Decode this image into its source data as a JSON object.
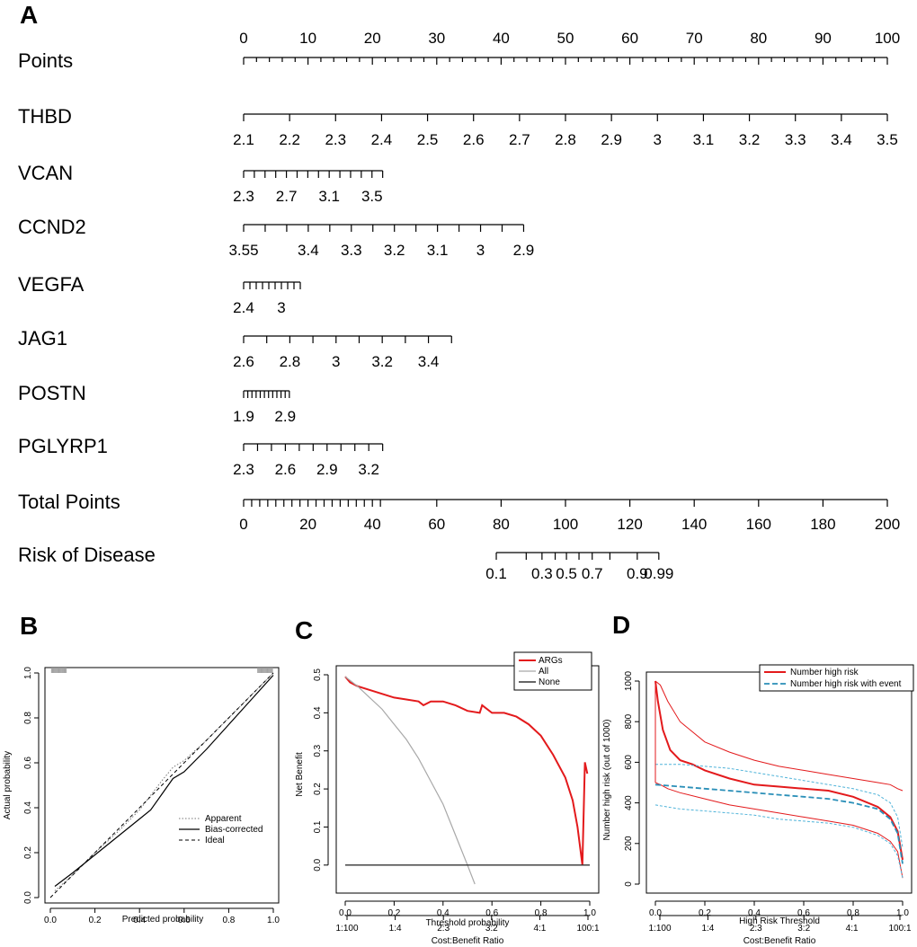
{
  "colors": {
    "red": "#e31a1c",
    "grey": "#a8a8a8",
    "cyan": "#4fb3d9",
    "dark": "#000000"
  },
  "chart_data": [
    {
      "panel": "A",
      "type": "nomogram",
      "rows": [
        {
          "name": "Points",
          "axis": "points",
          "ticks": [
            0,
            10,
            20,
            30,
            40,
            50,
            60,
            70,
            80,
            90,
            100
          ],
          "labels": [
            "0",
            "10",
            "20",
            "30",
            "40",
            "50",
            "60",
            "70",
            "80",
            "90",
            "100"
          ]
        },
        {
          "name": "THBD",
          "axis": "variable",
          "ticks": [
            2.1,
            2.2,
            2.3,
            2.4,
            2.5,
            2.6,
            2.7,
            2.8,
            2.9,
            3,
            3.1,
            3.2,
            3.3,
            3.4,
            3.5
          ],
          "labels": [
            "2.1",
            "2.2",
            "2.3",
            "2.4",
            "2.5",
            "2.6",
            "2.7",
            "2.8",
            "2.9",
            "3",
            "3.1",
            "3.2",
            "3.3",
            "3.4",
            "3.5"
          ],
          "points_range": [
            0,
            100
          ]
        },
        {
          "name": "VCAN",
          "axis": "variable",
          "ticks": [
            2.3,
            2.4,
            2.5,
            2.6,
            2.7,
            2.8,
            2.9,
            3.0,
            3.1,
            3.2,
            3.3,
            3.4,
            3.5,
            3.6
          ],
          "labels": [
            "2.3",
            "2.7",
            "3.1",
            "3.5"
          ],
          "label_values": [
            2.3,
            2.7,
            3.1,
            3.5
          ],
          "points_range": [
            0,
            21.6
          ]
        },
        {
          "name": "CCND2",
          "axis": "variable",
          "ticks": [
            3.55,
            3.5,
            3.45,
            3.4,
            3.35,
            3.3,
            3.25,
            3.2,
            3.15,
            3.1,
            3.05,
            3.0,
            2.95,
            2.9
          ],
          "labels": [
            "3.55",
            "3.4",
            "3.3",
            "3.2",
            "3.1",
            "3",
            "2.9"
          ],
          "label_values": [
            3.55,
            3.4,
            3.3,
            3.2,
            3.1,
            3.0,
            2.9
          ],
          "points_range": [
            0,
            43.5
          ]
        },
        {
          "name": "VEGFA",
          "axis": "variable",
          "ticks": [
            2.4,
            2.5,
            2.6,
            2.7,
            2.8,
            2.9,
            3.0,
            3.1,
            3.2,
            3.3
          ],
          "labels": [
            "2.4",
            "3"
          ],
          "label_values": [
            2.4,
            3.0
          ],
          "points_range": [
            0,
            8.8
          ]
        },
        {
          "name": "JAG1",
          "axis": "variable",
          "ticks": [
            2.6,
            2.7,
            2.8,
            2.9,
            3.0,
            3.1,
            3.2,
            3.3,
            3.4,
            3.5
          ],
          "labels": [
            "2.6",
            "2.8",
            "3",
            "3.2",
            "3.4"
          ],
          "label_values": [
            2.6,
            2.8,
            3.0,
            3.2,
            3.4
          ],
          "points_range": [
            0,
            32.3
          ]
        },
        {
          "name": "POSTN",
          "axis": "variable",
          "ticks": [
            1.9,
            2.0,
            2.1,
            2.2,
            2.3,
            2.4,
            2.5,
            2.6,
            2.7,
            2.8,
            2.9,
            3.0
          ],
          "labels": [
            "1.9",
            "2.9"
          ],
          "label_values": [
            1.9,
            2.9
          ],
          "points_range": [
            0,
            7.1
          ]
        },
        {
          "name": "PGLYRP1",
          "axis": "variable",
          "ticks": [
            2.3,
            2.4,
            2.5,
            2.6,
            2.7,
            2.8,
            2.9,
            3.0,
            3.1,
            3.2,
            3.3
          ],
          "labels": [
            "2.3",
            "2.6",
            "2.9",
            "3.2"
          ],
          "label_values": [
            2.3,
            2.6,
            2.9,
            3.2
          ],
          "points_range": [
            0,
            21.6
          ]
        },
        {
          "name": "Total Points",
          "axis": "total",
          "range": [
            0,
            200
          ],
          "minor_range": [
            0,
            43
          ],
          "minor_step": 2.5,
          "labels": [
            "0",
            "20",
            "40",
            "60",
            "80",
            "100",
            "120",
            "140",
            "160",
            "180",
            "200"
          ]
        },
        {
          "name": "Risk of Disease",
          "axis": "risk",
          "ticks": [
            0.1,
            0.2,
            0.3,
            0.4,
            0.5,
            0.6,
            0.7,
            0.8,
            0.9,
            0.99
          ],
          "tick_total_points": [
            78.5,
            87.8,
            92.7,
            96.8,
            100.3,
            104.2,
            108.3,
            113.8,
            122.3,
            129
          ],
          "labels": [
            "0.1",
            "0.3",
            "0.5",
            "0.7",
            "0.9",
            "0.99"
          ],
          "label_values": [
            0.1,
            0.3,
            0.5,
            0.7,
            0.9,
            0.99
          ]
        }
      ]
    },
    {
      "panel": "B",
      "type": "line",
      "xlabel": "Predicted probability",
      "ylabel": "Actual probability",
      "xlim": [
        0,
        1
      ],
      "ylim": [
        0,
        1
      ],
      "xticks": [
        "0.0",
        "0.2",
        "0.4",
        "0.6",
        "0.8",
        "1.0"
      ],
      "yticks": [
        "0.0",
        "0.2",
        "0.4",
        "0.6",
        "0.8",
        "1.0"
      ],
      "legend": [
        "Apparent",
        "Bias-corrected",
        "Ideal"
      ],
      "series": [
        {
          "name": "Apparent",
          "x": [
            0.02,
            0.1,
            0.2,
            0.3,
            0.4,
            0.5,
            0.55,
            0.6,
            0.7,
            0.8,
            0.9,
            1.0
          ],
          "y": [
            0.03,
            0.1,
            0.2,
            0.29,
            0.39,
            0.52,
            0.58,
            0.61,
            0.7,
            0.8,
            0.9,
            1.0
          ]
        },
        {
          "name": "Bias-corrected",
          "x": [
            0.02,
            0.1,
            0.2,
            0.3,
            0.4,
            0.45,
            0.5,
            0.55,
            0.6,
            0.7,
            0.8,
            0.9,
            1.0
          ],
          "y": [
            0.05,
            0.11,
            0.19,
            0.27,
            0.35,
            0.39,
            0.46,
            0.53,
            0.56,
            0.66,
            0.77,
            0.88,
            0.99
          ]
        },
        {
          "name": "Ideal",
          "x": [
            0,
            1
          ],
          "y": [
            0,
            1
          ]
        }
      ]
    },
    {
      "panel": "C",
      "type": "line",
      "xlabel": "Threshold probability",
      "ylabel": "Net Benefit",
      "xlim": [
        0,
        1
      ],
      "ylim": [
        -0.05,
        0.5
      ],
      "xticks": [
        "0.0",
        "0.2",
        "0.4",
        "0.6",
        "0.8",
        "1.0"
      ],
      "yticks": [
        "0.0",
        "0.1",
        "0.2",
        "0.3",
        "0.4",
        "0.5"
      ],
      "legend": [
        "ARGs",
        "All",
        "None"
      ],
      "second_axis": {
        "title": "Cost:Benefit Ratio",
        "labels": [
          "1:100",
          "1:4",
          "2:3",
          "3:2",
          "4:1",
          "100:1"
        ]
      },
      "series": [
        {
          "name": "ARGs",
          "x": [
            0.0,
            0.02,
            0.05,
            0.1,
            0.15,
            0.2,
            0.25,
            0.3,
            0.32,
            0.35,
            0.4,
            0.45,
            0.5,
            0.55,
            0.56,
            0.6,
            0.65,
            0.7,
            0.75,
            0.8,
            0.85,
            0.9,
            0.93,
            0.95,
            0.97,
            0.98,
            0.99
          ],
          "y": [
            0.495,
            0.48,
            0.47,
            0.46,
            0.45,
            0.44,
            0.435,
            0.43,
            0.42,
            0.43,
            0.43,
            0.42,
            0.405,
            0.4,
            0.42,
            0.4,
            0.4,
            0.39,
            0.37,
            0.34,
            0.29,
            0.23,
            0.17,
            0.1,
            0.0,
            0.27,
            0.24
          ]
        },
        {
          "name": "All",
          "x": [
            0.0,
            0.05,
            0.1,
            0.15,
            0.2,
            0.25,
            0.3,
            0.35,
            0.4,
            0.45,
            0.5,
            0.53
          ],
          "y": [
            0.495,
            0.47,
            0.44,
            0.41,
            0.37,
            0.33,
            0.28,
            0.22,
            0.16,
            0.08,
            0.0,
            -0.05
          ]
        },
        {
          "name": "None",
          "x": [
            0,
            1
          ],
          "y": [
            0,
            0
          ]
        }
      ]
    },
    {
      "panel": "D",
      "type": "line",
      "xlabel": "High Risk Threshold",
      "ylabel": "Number high risk (out of 1000)",
      "xlim": [
        0,
        1
      ],
      "ylim": [
        0,
        1000
      ],
      "xticks": [
        "0.0",
        "0.2",
        "0.4",
        "0.6",
        "0.8",
        "1.0"
      ],
      "yticks": [
        "0",
        "200",
        "400",
        "600",
        "800",
        "1000"
      ],
      "legend": [
        "Number high risk",
        "Number high risk with event"
      ],
      "second_axis": {
        "title": "Cost:Benefit Ratio",
        "labels": [
          "1:100",
          "1:4",
          "2:3",
          "3:2",
          "4:1",
          "100:1"
        ]
      },
      "series": [
        {
          "name": "Number high risk",
          "x": [
            0.0,
            0.01,
            0.03,
            0.06,
            0.1,
            0.15,
            0.2,
            0.3,
            0.4,
            0.5,
            0.6,
            0.7,
            0.8,
            0.9,
            0.95,
            0.98,
            1.0
          ],
          "y": [
            1000,
            900,
            760,
            660,
            610,
            590,
            560,
            520,
            490,
            480,
            470,
            460,
            430,
            380,
            330,
            260,
            120
          ]
        },
        {
          "name": "Number high risk upper",
          "x": [
            0.0,
            0.02,
            0.05,
            0.1,
            0.2,
            0.3,
            0.4,
            0.5,
            0.6,
            0.7,
            0.8,
            0.9,
            0.95,
            0.98,
            1.0
          ],
          "y": [
            1000,
            980,
            900,
            800,
            700,
            650,
            610,
            580,
            560,
            540,
            520,
            500,
            490,
            470,
            460
          ]
        },
        {
          "name": "Number high risk lower",
          "x": [
            0.0,
            0.02,
            0.05,
            0.1,
            0.2,
            0.3,
            0.4,
            0.5,
            0.6,
            0.7,
            0.8,
            0.9,
            0.95,
            0.98,
            1.0
          ],
          "y": [
            500,
            490,
            470,
            450,
            420,
            390,
            370,
            350,
            330,
            310,
            290,
            250,
            210,
            160,
            30
          ]
        },
        {
          "name": "Number high risk with event",
          "x": [
            0.0,
            0.1,
            0.2,
            0.3,
            0.4,
            0.5,
            0.6,
            0.7,
            0.8,
            0.9,
            0.95,
            0.98,
            1.0
          ],
          "y": [
            490,
            480,
            470,
            460,
            450,
            440,
            430,
            420,
            400,
            370,
            320,
            250,
            100
          ]
        },
        {
          "name": "Number high risk with event upper",
          "x": [
            0.0,
            0.1,
            0.2,
            0.3,
            0.4,
            0.5,
            0.6,
            0.7,
            0.8,
            0.9,
            0.95,
            0.98,
            1.0
          ],
          "y": [
            590,
            590,
            580,
            570,
            550,
            530,
            510,
            490,
            470,
            440,
            400,
            330,
            180
          ]
        },
        {
          "name": "Number high risk with event lower",
          "x": [
            0.0,
            0.1,
            0.2,
            0.3,
            0.4,
            0.5,
            0.6,
            0.7,
            0.8,
            0.9,
            0.95,
            0.98,
            1.0
          ],
          "y": [
            390,
            370,
            360,
            350,
            340,
            320,
            310,
            300,
            280,
            240,
            200,
            140,
            30
          ]
        }
      ]
    }
  ]
}
